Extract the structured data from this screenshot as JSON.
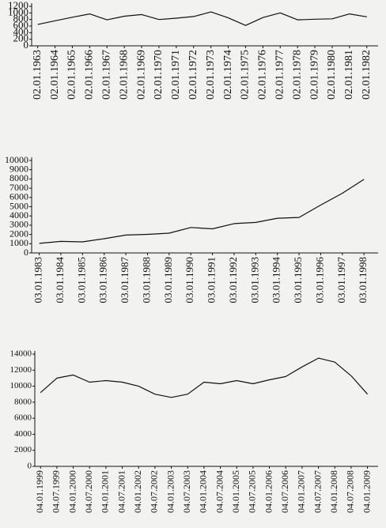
{
  "chart_data": [
    {
      "type": "line",
      "color": "#111111",
      "x": [
        "02.01.1963",
        "02.01.1964",
        "02.01.1965",
        "02.01.1966",
        "02.01.1967",
        "02.01.1968",
        "02.01.1969",
        "02.01.1970",
        "02.01.1971",
        "02.01.1972",
        "02.01.1973",
        "02.01.1974",
        "02.01.1975",
        "02.01.1976",
        "02.01.1977",
        "02.01.1978",
        "02.01.1979",
        "02.01.1980",
        "02.01.1981",
        "02.01.1982"
      ],
      "values": [
        650,
        760,
        870,
        970,
        790,
        900,
        950,
        800,
        840,
        890,
        1030,
        850,
        620,
        860,
        1000,
        790,
        810,
        820,
        970,
        880
      ],
      "ylim": [
        0,
        1200
      ],
      "yticks": [
        0,
        200,
        400,
        600,
        800,
        1000,
        1200
      ]
    },
    {
      "type": "line",
      "color": "#111111",
      "x": [
        "03.01.1983",
        "03.01.1984",
        "03.01.1985",
        "03.01.1986",
        "03.01.1987",
        "03.01.1988",
        "03.01.1989",
        "03.01.1990",
        "03.01.1991",
        "03.01.1992",
        "03.01.1993",
        "03.01.1994",
        "03.01.1995",
        "03.01.1996",
        "03.01.1997",
        "03.01.1998"
      ],
      "values": [
        1030,
        1250,
        1200,
        1540,
        1930,
        2010,
        2140,
        2750,
        2610,
        3170,
        3300,
        3750,
        3840,
        5180,
        6450,
        7960
      ],
      "ylim": [
        0,
        10000
      ],
      "yticks": [
        0,
        1000,
        2000,
        3000,
        4000,
        5000,
        6000,
        7000,
        8000,
        9000,
        10000
      ]
    },
    {
      "type": "line",
      "color": "#111111",
      "x": [
        "04.01.1999",
        "04.07.1999",
        "04.01.2000",
        "04.07.2000",
        "04.01.2001",
        "04.07.2001",
        "04.01.2002",
        "04.07.2002",
        "04.01.2003",
        "04.07.2003",
        "04.01.2004",
        "04.07.2004",
        "04.01.2005",
        "04.07.2005",
        "04.01.2006",
        "04.07.2006",
        "04.01.2007",
        "04.07.2007",
        "04.01.2008",
        "04.07.2008",
        "04.01.2009"
      ],
      "values": [
        9200,
        11000,
        11400,
        10500,
        10700,
        10500,
        10000,
        9000,
        8600,
        9000,
        10500,
        10300,
        10700,
        10300,
        10800,
        11200,
        12400,
        13500,
        13000,
        11300,
        9000
      ],
      "ylim": [
        0,
        14000
      ],
      "yticks": [
        0,
        2000,
        4000,
        6000,
        8000,
        10000,
        12000,
        14000
      ]
    }
  ]
}
